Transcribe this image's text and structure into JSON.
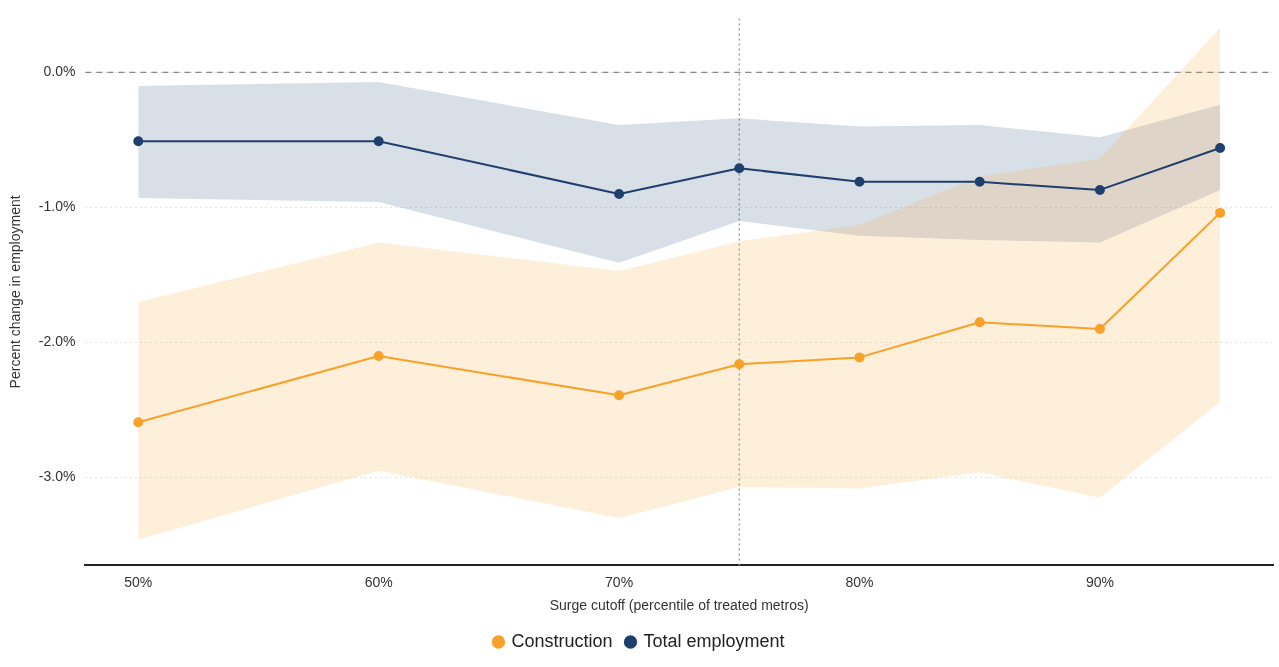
{
  "chart_data": {
    "type": "line",
    "xlabel": "Surge cutoff (percentile of treated metros)",
    "ylabel": "Percent change in employment",
    "x": [
      50,
      60,
      70,
      75,
      80,
      85,
      90,
      95
    ],
    "series": [
      {
        "name": "Construction",
        "color": "#f7a128",
        "values": [
          -2.59,
          -2.1,
          -2.39,
          -2.16,
          -2.11,
          -1.85,
          -1.9,
          -1.04
        ],
        "lower": [
          -3.46,
          -2.95,
          -3.3,
          -3.07,
          -3.08,
          -2.96,
          -3.15,
          -2.44
        ],
        "upper": [
          -1.7,
          -1.26,
          -1.47,
          -1.25,
          -1.13,
          -0.77,
          -0.64,
          0.33
        ]
      },
      {
        "name": "Total employment",
        "color": "#1f3f6e",
        "values": [
          -0.51,
          -0.51,
          -0.9,
          -0.71,
          -0.81,
          -0.81,
          -0.87,
          -0.56
        ],
        "lower": [
          -0.93,
          -0.96,
          -1.41,
          -1.1,
          -1.21,
          -1.24,
          -1.26,
          -0.87
        ],
        "upper": [
          -0.1,
          -0.07,
          -0.39,
          -0.34,
          -0.4,
          -0.39,
          -0.48,
          -0.24
        ]
      }
    ],
    "xlim": [
      47.8,
      97.2
    ],
    "xticks": [
      {
        "value": 50,
        "label": "50%"
      },
      {
        "value": 60,
        "label": "60%"
      },
      {
        "value": 70,
        "label": "70%"
      },
      {
        "value": 80,
        "label": "80%"
      },
      {
        "value": 90,
        "label": "90%"
      }
    ],
    "ylim": [
      -3.65,
      0.4
    ],
    "yticks": [
      {
        "value": -3,
        "label": "-3.0%"
      },
      {
        "value": -2,
        "label": "-2.0%"
      },
      {
        "value": -1,
        "label": "-1.0%"
      },
      {
        "value": 0,
        "label": "0.0%"
      }
    ],
    "ref_lines": [
      {
        "axis": "y",
        "value": 0,
        "line_style": "dashed",
        "color": "#888888"
      },
      {
        "axis": "x",
        "value": 75,
        "line_style": "dotted",
        "color": "#999999"
      }
    ],
    "grid": "y",
    "legend": "bottom",
    "marker": "circle",
    "line_style": "solid"
  }
}
